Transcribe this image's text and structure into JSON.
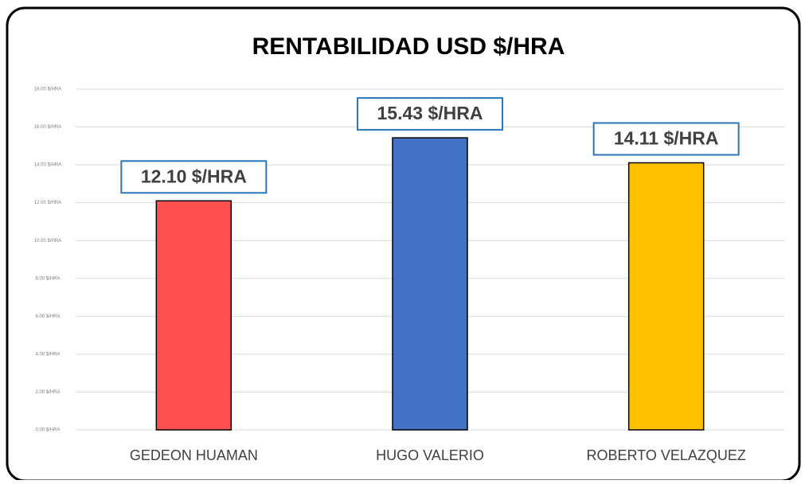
{
  "chart_data": {
    "type": "bar",
    "title": "RENTABILIDAD USD $/HRA",
    "categories": [
      "GEDEON HUAMAN",
      "HUGO VALERIO",
      "ROBERTO VELAZQUEZ"
    ],
    "values": [
      12.1,
      15.43,
      14.11
    ],
    "value_labels": [
      "12.10 $/HRA",
      "15.43 $/HRA",
      "14.11 $/HRA"
    ],
    "colors": [
      "#ff5050",
      "#4472c4",
      "#ffc000"
    ],
    "ylim": [
      0,
      18
    ],
    "yticks": [
      {
        "value": 0,
        "label": "0.00 $/HRA"
      },
      {
        "value": 2,
        "label": "2.00 $/HRA"
      },
      {
        "value": 4,
        "label": "4.00 $/HRA"
      },
      {
        "value": 6,
        "label": "6.00 $/HRA"
      },
      {
        "value": 8,
        "label": "8.00 $/HRA"
      },
      {
        "value": 10,
        "label": "10.00 $/HRA"
      },
      {
        "value": 12,
        "label": "12.00 $/HRA"
      },
      {
        "value": 14,
        "label": "14.00 $/HRA"
      },
      {
        "value": 16,
        "label": "16.00 $/HRA"
      },
      {
        "value": 18,
        "label": "18.00 $/HRA"
      }
    ],
    "grid": true
  }
}
